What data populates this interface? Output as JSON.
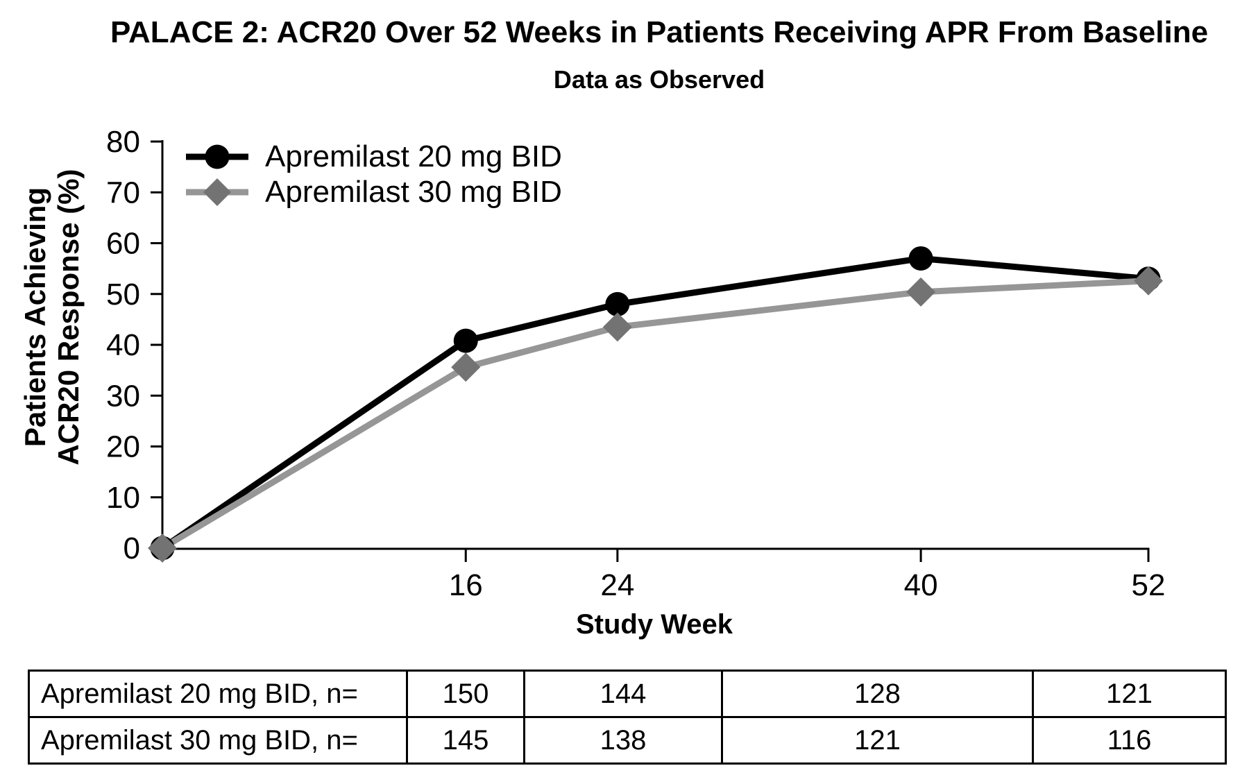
{
  "page": {
    "title": "PALACE 2: ACR20 Over 52 Weeks in Patients Receiving APR From Baseline",
    "subtitle": "Data as Observed"
  },
  "chart_data": {
    "type": "line",
    "title": "PALACE 2: ACR20 Over 52 Weeks in Patients Receiving APR From Baseline",
    "subtitle": "Data as Observed",
    "xlabel": "Study Week",
    "ylabel": "Patients Achieving\nACR20 Response (%)",
    "x": [
      0,
      16,
      24,
      40,
      52
    ],
    "x_tick_labels": [
      16,
      24,
      40,
      52
    ],
    "y_ticks": [
      0,
      10,
      20,
      30,
      40,
      50,
      60,
      70,
      80
    ],
    "xlim": [
      0,
      52
    ],
    "ylim": [
      0,
      80
    ],
    "grid": false,
    "legend_position": "inside-top-left",
    "series": [
      {
        "name": "Apremilast 20 mg BID",
        "marker": "circle",
        "color": "#000000",
        "marker_color": "#000000",
        "values": [
          0,
          40.8,
          48.0,
          57.0,
          53.0
        ]
      },
      {
        "name": "Apremilast 30 mg BID",
        "marker": "diamond",
        "color": "#969696",
        "marker_color": "#737373",
        "values": [
          0,
          35.6,
          43.5,
          50.4,
          52.6
        ]
      }
    ]
  },
  "table": {
    "rows": [
      {
        "label": "Apremilast 20 mg BID, n=",
        "values": [
          "150",
          "144",
          "128",
          "121"
        ]
      },
      {
        "label": "Apremilast 30 mg BID, n=",
        "values": [
          "145",
          "138",
          "121",
          "116"
        ]
      }
    ]
  }
}
